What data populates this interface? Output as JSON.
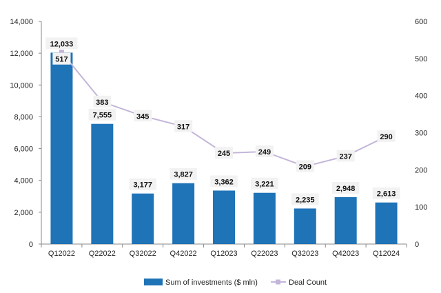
{
  "chart_data": {
    "type": "bar+line",
    "title": "",
    "categories": [
      "Q12022",
      "Q22022",
      "Q32022",
      "Q42022",
      "Q12023",
      "Q22023",
      "Q32023",
      "Q42023",
      "Q12024"
    ],
    "series": [
      {
        "name": "Sum of investments ($ mln)",
        "type": "bar",
        "axis": "left",
        "color": "#1f73b7",
        "values": [
          12033,
          7555,
          3177,
          3827,
          3362,
          3221,
          2235,
          2948,
          2613
        ],
        "labels": [
          "12,033",
          "7,555",
          "3,177",
          "3,827",
          "3,362",
          "3,221",
          "2,235",
          "2,948",
          "2,613"
        ]
      },
      {
        "name": "Deal Count",
        "type": "line",
        "axis": "right",
        "color": "#c3b5d8",
        "values": [
          517,
          383,
          345,
          317,
          245,
          249,
          209,
          237,
          290
        ],
        "labels": [
          "517",
          "383",
          "345",
          "317",
          "245",
          "249",
          "209",
          "237",
          "290"
        ]
      }
    ],
    "y_left": {
      "min": 0,
      "max": 14000,
      "ticks": [
        "0",
        "2,000",
        "4,000",
        "6,000",
        "8,000",
        "10,000",
        "12,000",
        "14,000"
      ]
    },
    "y_right": {
      "min": 0,
      "max": 600,
      "ticks": [
        "0",
        "100",
        "200",
        "300",
        "400",
        "500",
        "600"
      ]
    },
    "legend": {
      "position": "bottom"
    },
    "grid": false,
    "label_bg": "#f2f2f2"
  }
}
